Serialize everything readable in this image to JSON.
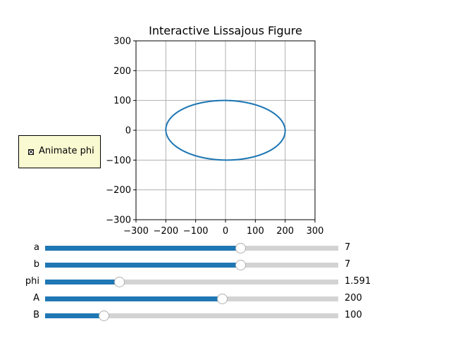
{
  "chart_data": {
    "type": "line",
    "title": "Interactive Lissajous Figure",
    "xlim": [
      -300,
      300
    ],
    "ylim": [
      -300,
      300
    ],
    "xticks": [
      -300,
      -200,
      -100,
      0,
      100,
      200,
      300
    ],
    "yticks": [
      -300,
      -200,
      -100,
      0,
      100,
      200,
      300
    ],
    "xtick_labels": [
      "−300",
      "−200",
      "−100",
      "0",
      "100",
      "200",
      "300"
    ],
    "ytick_labels": [
      "−300",
      "−200",
      "−100",
      "0",
      "100",
      "200",
      "300"
    ],
    "grid": true,
    "series": [
      {
        "formula": "x = A·sin(a·t + phi), y = B·sin(b·t)",
        "color": "#1f77b4"
      }
    ]
  },
  "checkbox": {
    "label": "Animate phi",
    "checked": true
  },
  "sliders": [
    {
      "label": "a",
      "value": 7,
      "display": "7",
      "fraction": 0.667
    },
    {
      "label": "b",
      "value": 7,
      "display": "7",
      "fraction": 0.667
    },
    {
      "label": "phi",
      "value": 1.591,
      "display": "1.591",
      "fraction": 0.253
    },
    {
      "label": "A",
      "value": 200,
      "display": "200",
      "fraction": 0.603
    },
    {
      "label": "B",
      "value": 100,
      "display": "100",
      "fraction": 0.2
    }
  ],
  "colors": {
    "accent": "#1f77b4",
    "track": "#d3d3d3",
    "grid": "#b0b0b0",
    "panel": "#fafad2"
  }
}
